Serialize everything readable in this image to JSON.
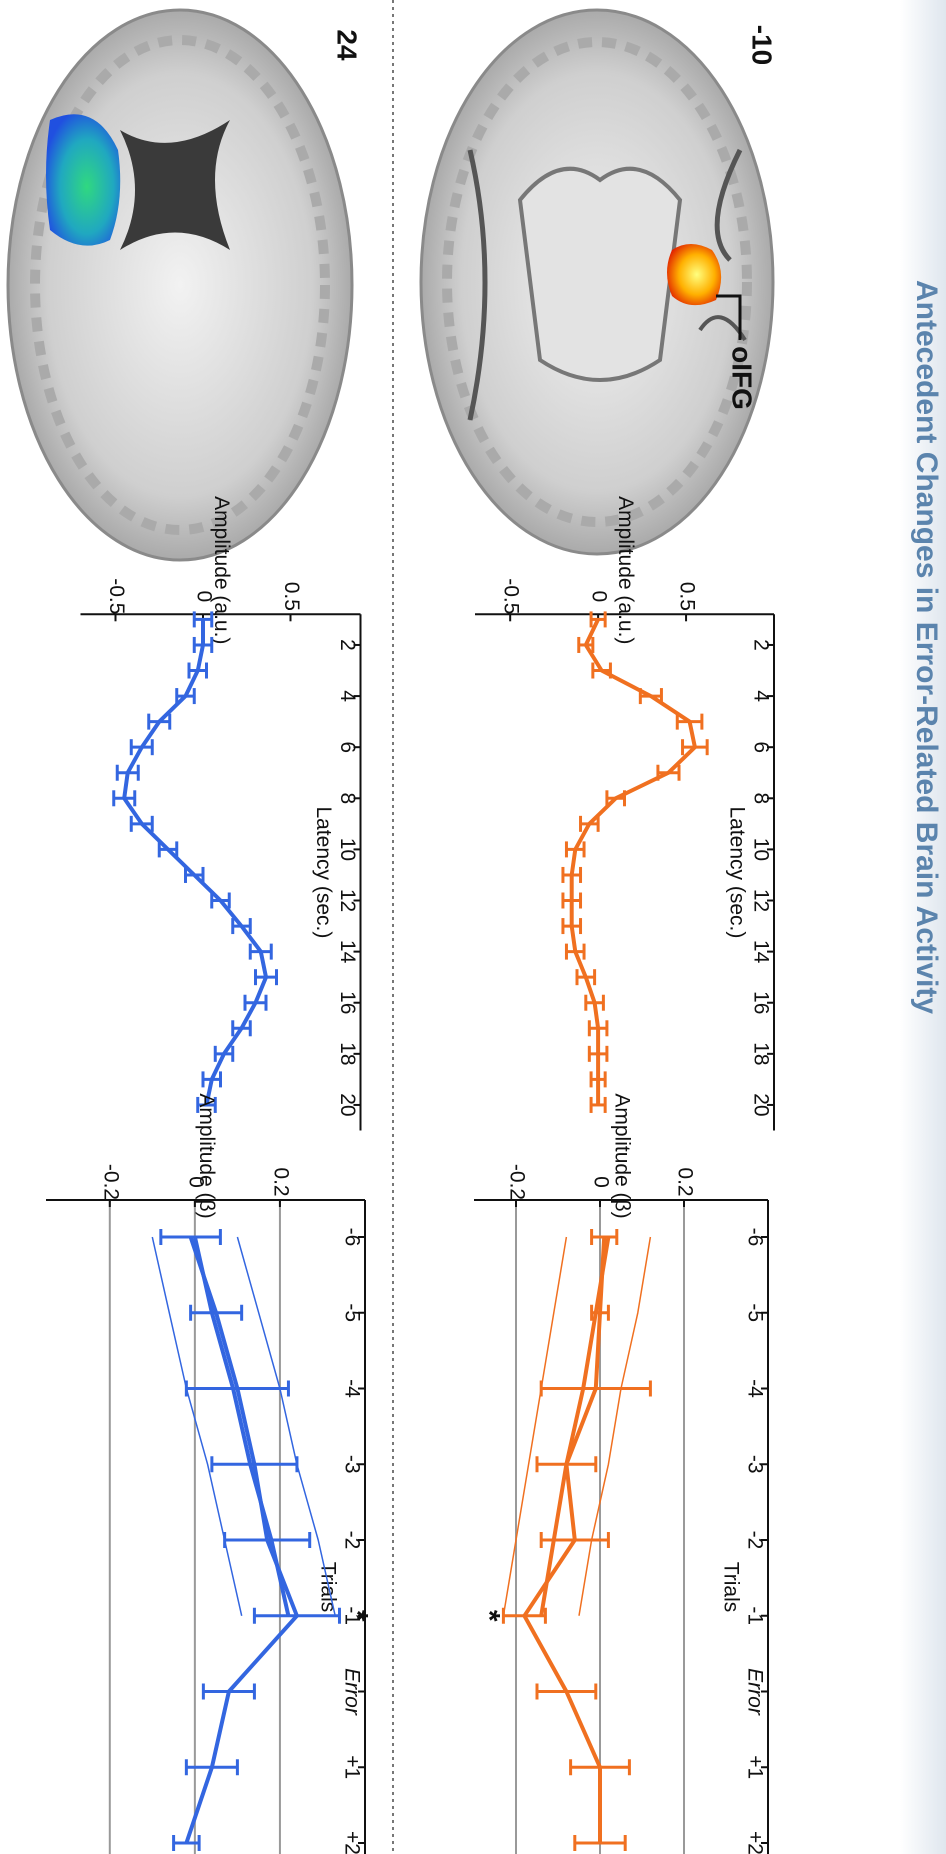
{
  "header": {
    "title": "Antecedent Changes in Error-Related Brain Activity"
  },
  "slices": [
    {
      "label": "-10",
      "region": "oIFG"
    },
    {
      "label": "24"
    }
  ],
  "chart_data": [
    {
      "type": "line",
      "color": "#f07020",
      "ylabel": "Amplitude (a.u.)",
      "xlabel": "Latency (sec.)",
      "x": [
        1,
        2,
        3,
        4,
        5,
        6,
        7,
        8,
        9,
        10,
        11,
        12,
        13,
        14,
        15,
        16,
        17,
        18,
        19,
        20
      ],
      "values": [
        0.0,
        -0.07,
        0.02,
        0.3,
        0.52,
        0.55,
        0.4,
        0.1,
        -0.05,
        -0.13,
        -0.15,
        -0.15,
        -0.15,
        -0.13,
        -0.07,
        -0.02,
        0.0,
        0.0,
        0.0,
        0.0
      ],
      "errors": [
        0.04,
        0.04,
        0.05,
        0.06,
        0.07,
        0.07,
        0.06,
        0.05,
        0.05,
        0.05,
        0.05,
        0.05,
        0.05,
        0.05,
        0.05,
        0.05,
        0.05,
        0.05,
        0.04,
        0.04
      ],
      "xlim": [
        0.8,
        21
      ],
      "xticks": [
        2,
        4,
        6,
        8,
        10,
        12,
        14,
        16,
        18,
        20
      ],
      "ylim": [
        -0.7,
        1.0
      ],
      "yticks": [
        -0.5,
        0,
        0.5
      ],
      "grid": false
    },
    {
      "type": "line",
      "ylabel": "Amplitude (β)",
      "xlabel": "Trials",
      "categories": [
        "-6",
        "-5",
        "-4",
        "-3",
        "-2",
        "-1",
        "Error",
        "+1",
        "+2"
      ],
      "series": [
        {
          "color": "#f07020",
          "values": [
            0.01,
            0.0,
            -0.01,
            -0.08,
            -0.06,
            -0.18,
            -0.08,
            0.0,
            0.0
          ],
          "errors": [
            0.03,
            0.02,
            0.13,
            0.07,
            0.08,
            0.05,
            0.07,
            0.07,
            0.06
          ]
        },
        {
          "color": "#f07020",
          "values": [
            0.02,
            -0.01,
            -0.04,
            -0.08,
            -0.11,
            -0.14,
            null,
            null,
            null
          ]
        },
        {
          "color": "#f07020",
          "values": [
            0.12,
            0.09,
            0.05,
            0.02,
            -0.02,
            -0.05,
            null,
            null,
            null
          ]
        },
        {
          "color": "#f07020",
          "values": [
            -0.08,
            -0.11,
            -0.14,
            -0.17,
            -0.2,
            -0.23,
            null,
            null,
            null
          ]
        }
      ],
      "annotations": [
        {
          "text": "*",
          "category": "-1"
        }
      ],
      "ylim": [
        -0.3,
        0.4
      ],
      "yticks": [
        -0.2,
        0,
        0.2
      ],
      "grid": true
    },
    {
      "type": "line",
      "color": "#3366e0",
      "ylabel": "Amplitude (a.u.)",
      "xlabel": "Latency (sec.)",
      "x": [
        1,
        2,
        3,
        4,
        5,
        6,
        7,
        8,
        9,
        10,
        11,
        12,
        13,
        14,
        15,
        16,
        17,
        18,
        19,
        20
      ],
      "values": [
        0.0,
        0.0,
        -0.03,
        -0.1,
        -0.25,
        -0.35,
        -0.43,
        -0.45,
        -0.35,
        -0.2,
        -0.05,
        0.1,
        0.22,
        0.33,
        0.36,
        0.3,
        0.22,
        0.12,
        0.05,
        0.02
      ],
      "errors": [
        0.05,
        0.05,
        0.05,
        0.05,
        0.06,
        0.06,
        0.06,
        0.06,
        0.06,
        0.05,
        0.05,
        0.05,
        0.05,
        0.06,
        0.06,
        0.06,
        0.05,
        0.05,
        0.05,
        0.05
      ],
      "xlim": [
        0.8,
        21
      ],
      "xticks": [
        2,
        4,
        6,
        8,
        10,
        12,
        14,
        16,
        18,
        20
      ],
      "ylim": [
        -0.7,
        0.9
      ],
      "yticks": [
        -0.5,
        0,
        0.5
      ],
      "grid": false
    },
    {
      "type": "line",
      "ylabel": "Amplitude (β)",
      "xlabel": "Trials",
      "categories": [
        "-6",
        "-5",
        "-4",
        "-3",
        "-2",
        "-1",
        "Error",
        "+1",
        "+2"
      ],
      "series": [
        {
          "color": "#3366e0",
          "values": [
            -0.01,
            0.05,
            0.1,
            0.14,
            0.17,
            0.24,
            0.08,
            0.04,
            -0.02
          ],
          "errors": [
            0.07,
            0.06,
            0.12,
            0.1,
            0.1,
            0.1,
            0.06,
            0.06,
            0.03
          ]
        },
        {
          "color": "#3366e0",
          "values": [
            0.0,
            0.04,
            0.09,
            0.13,
            0.18,
            0.22,
            null,
            null,
            null
          ]
        },
        {
          "color": "#3366e0",
          "values": [
            0.1,
            0.15,
            0.2,
            0.24,
            0.29,
            0.33,
            null,
            null,
            null
          ]
        },
        {
          "color": "#3366e0",
          "values": [
            -0.1,
            -0.06,
            -0.02,
            0.03,
            0.07,
            0.11,
            null,
            null,
            null
          ]
        }
      ],
      "annotations": [
        {
          "text": "*",
          "category": "-1"
        }
      ],
      "ylim": [
        -0.35,
        0.4
      ],
      "yticks": [
        -0.2,
        0,
        0.2
      ],
      "grid": true
    }
  ]
}
